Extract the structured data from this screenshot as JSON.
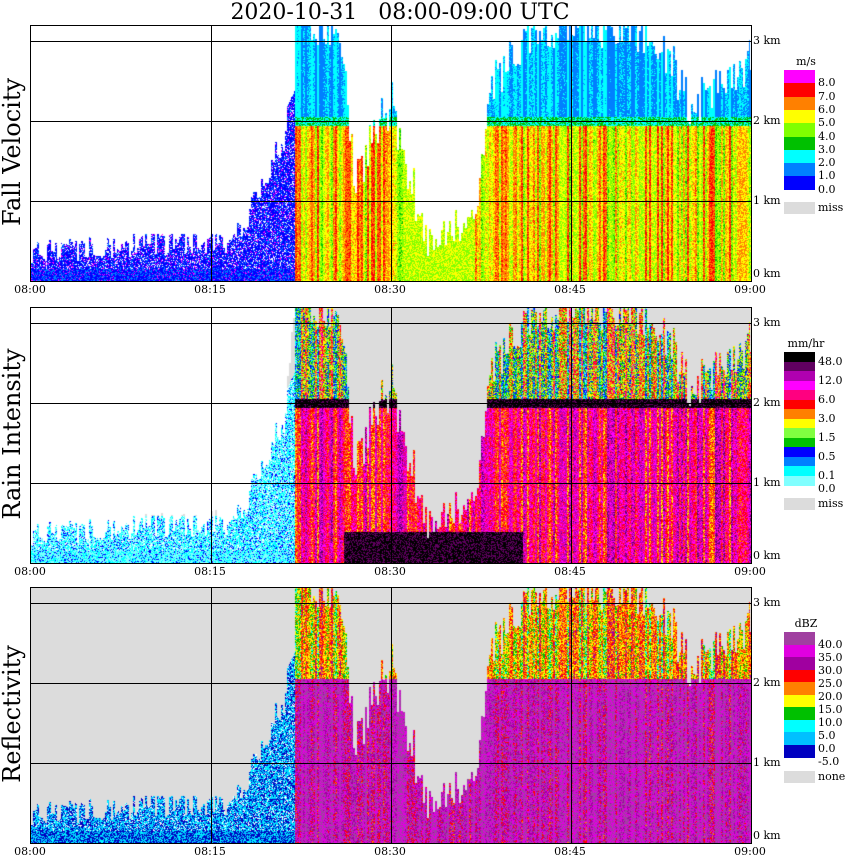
{
  "chart_data": {
    "type": "heatmap",
    "title": "2020-10-31   08:00-09:00 UTC",
    "x_ticks": [
      "08:00",
      "08:15",
      "08:30",
      "08:45",
      "09:00"
    ],
    "x_range_min": [
      0,
      60
    ],
    "y_range_km": [
      0,
      3.19
    ],
    "y_ticks": [
      "0 km",
      "1 km",
      "2 km",
      "3 km"
    ],
    "grid": true,
    "echo_top_profile": {
      "t_min": [
        0,
        17,
        19,
        21,
        22,
        25,
        26,
        27,
        29,
        30,
        31,
        33,
        37,
        38,
        40,
        42,
        50,
        53,
        55,
        57,
        60
      ],
      "top_km": [
        0.4,
        0.5,
        1.2,
        1.8,
        3.2,
        3.2,
        2.6,
        1.2,
        2.0,
        2.2,
        1.5,
        0.6,
        0.8,
        2.3,
        2.8,
        3.2,
        3.2,
        2.8,
        2.2,
        2.5,
        2.8
      ]
    },
    "bright_band_km": 2.0,
    "panels": [
      {
        "ylabel": "Fall Velocity",
        "unit": "m/s",
        "legend": [
          {
            "c": "#ff00ff",
            "l": "8.0"
          },
          {
            "c": "#ff0000",
            "l": "7.0"
          },
          {
            "c": "#ff8000",
            "l": "6.0"
          },
          {
            "c": "#ffff00",
            "l": "5.0"
          },
          {
            "c": "#80ff00",
            "l": "4.0"
          },
          {
            "c": "#00c000",
            "l": "3.0"
          },
          {
            "c": "#00ffff",
            "l": "2.0"
          },
          {
            "c": "#0080ff",
            "l": "1.0"
          },
          {
            "c": "#0000ff",
            "l": "0.0"
          }
        ],
        "missing_label": "miss",
        "missing_color": "#dcdcdc"
      },
      {
        "ylabel": "Rain Intensity",
        "unit": "mm/hr",
        "legend": [
          {
            "c": "#000000",
            "l": "48.0"
          },
          {
            "c": "#600060",
            "l": ""
          },
          {
            "c": "#b000b0",
            "l": "12.0"
          },
          {
            "c": "#ff00ff",
            "l": ""
          },
          {
            "c": "#ff0080",
            "l": "6.0"
          },
          {
            "c": "#ff0000",
            "l": ""
          },
          {
            "c": "#ff8000",
            "l": "3.0"
          },
          {
            "c": "#ffff00",
            "l": ""
          },
          {
            "c": "#80ff40",
            "l": "1.5"
          },
          {
            "c": "#00c000",
            "l": ""
          },
          {
            "c": "#0000ff",
            "l": "0.5"
          },
          {
            "c": "#0080ff",
            "l": ""
          },
          {
            "c": "#00ffff",
            "l": "0.1"
          },
          {
            "c": "#80ffff",
            "l": "0.0"
          }
        ],
        "missing_label": "miss",
        "missing_color": "#dcdcdc"
      },
      {
        "ylabel": "Reflectivity",
        "unit": "dBZ",
        "legend": [
          {
            "c": "#a040a0",
            "l": "40.0"
          },
          {
            "c": "#e000e0",
            "l": "35.0"
          },
          {
            "c": "#a000a0",
            "l": "30.0"
          },
          {
            "c": "#ff0000",
            "l": "25.0"
          },
          {
            "c": "#ff8000",
            "l": "20.0"
          },
          {
            "c": "#ffff00",
            "l": "15.0"
          },
          {
            "c": "#00c000",
            "l": "10.0"
          },
          {
            "c": "#00ffff",
            "l": "5.0"
          },
          {
            "c": "#00c0ff",
            "l": "0.0"
          },
          {
            "c": "#0000c0",
            "l": "-5.0"
          }
        ],
        "missing_label": "none",
        "missing_color": "#dcdcdc"
      }
    ]
  }
}
